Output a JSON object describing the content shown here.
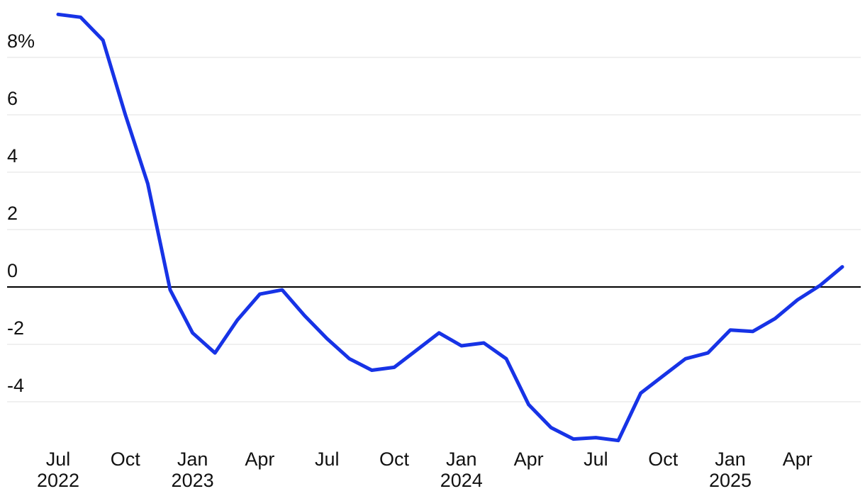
{
  "chart_data": {
    "type": "line",
    "title": "",
    "xlabel": "",
    "ylabel": "",
    "unit": "%",
    "x": [
      "Jul 2022",
      "Aug 2022",
      "Sep 2022",
      "Oct 2022",
      "Nov 2022",
      "Dec 2022",
      "Jan 2023",
      "Feb 2023",
      "Mar 2023",
      "Apr 2023",
      "May 2023",
      "Jun 2023",
      "Jul 2023",
      "Aug 2023",
      "Sep 2023",
      "Oct 2023",
      "Nov 2023",
      "Dec 2023",
      "Jan 2024",
      "Feb 2024",
      "Mar 2024",
      "Apr 2024",
      "May 2024",
      "Jun 2024",
      "Jul 2024",
      "Aug 2024",
      "Sep 2024",
      "Oct 2024",
      "Nov 2024",
      "Dec 2024",
      "Jan 2025",
      "Feb 2025",
      "Mar 2025",
      "Apr 2025",
      "May 2025",
      "Jun 2025"
    ],
    "values": [
      9.5,
      9.4,
      8.6,
      6.0,
      3.6,
      -0.1,
      -1.6,
      -2.3,
      -1.15,
      -0.25,
      -0.1,
      -1.0,
      -1.8,
      -2.5,
      -2.9,
      -2.8,
      -2.2,
      -1.6,
      -2.05,
      -1.95,
      -2.5,
      -4.1,
      -4.9,
      -5.3,
      -5.25,
      -5.35,
      -3.7,
      -3.1,
      -2.5,
      -2.3,
      -1.5,
      -1.55,
      -1.1,
      -0.45,
      0.05,
      0.7
    ],
    "y_ticks": [
      {
        "value": 8,
        "label": "8%"
      },
      {
        "value": 6,
        "label": "6"
      },
      {
        "value": 4,
        "label": "4"
      },
      {
        "value": 2,
        "label": "2"
      },
      {
        "value": 0,
        "label": "0"
      },
      {
        "value": -2,
        "label": "-2"
      },
      {
        "value": -4,
        "label": "-4"
      }
    ],
    "x_ticks": [
      {
        "index": 0,
        "label": "Jul",
        "year": "2022"
      },
      {
        "index": 3,
        "label": "Oct",
        "year": ""
      },
      {
        "index": 6,
        "label": "Jan",
        "year": "2023"
      },
      {
        "index": 9,
        "label": "Apr",
        "year": ""
      },
      {
        "index": 12,
        "label": "Jul",
        "year": ""
      },
      {
        "index": 15,
        "label": "Oct",
        "year": ""
      },
      {
        "index": 18,
        "label": "Jan",
        "year": "2024"
      },
      {
        "index": 21,
        "label": "Apr",
        "year": ""
      },
      {
        "index": 24,
        "label": "Jul",
        "year": ""
      },
      {
        "index": 27,
        "label": "Oct",
        "year": ""
      },
      {
        "index": 30,
        "label": "Jan",
        "year": "2025"
      },
      {
        "index": 33,
        "label": "Apr",
        "year": ""
      }
    ],
    "ylim": [
      -5.9,
      10.0
    ],
    "grid": true,
    "legend": "none",
    "colors": {
      "line": "#1733e6",
      "zero_line": "#000000",
      "grid": "#e8e8e8",
      "text": "#111111",
      "background": "#ffffff"
    }
  }
}
